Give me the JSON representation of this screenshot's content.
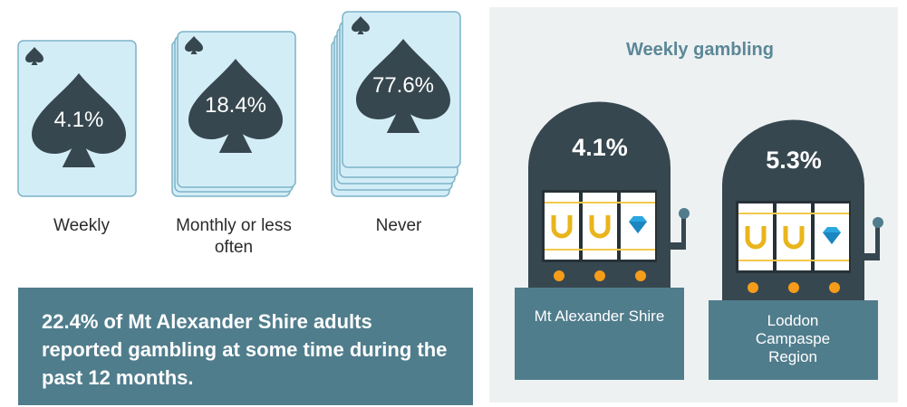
{
  "cards": [
    {
      "value_label": "4.1%",
      "label": "Weekly"
    },
    {
      "value_label": "18.4%",
      "label": "Monthly or less often"
    },
    {
      "value_label": "77.6%",
      "label": "Never"
    }
  ],
  "summary": "22.4% of Mt Alexander Shire adults reported gambling at some time during the past 12 months.",
  "panel": {
    "title": "Weekly gambling",
    "machines": [
      {
        "value_label": "4.1%",
        "label": "Mt Alexander Shire"
      },
      {
        "value_label": "5.3%",
        "label": "Loddon Campaspe Region"
      }
    ]
  }
}
